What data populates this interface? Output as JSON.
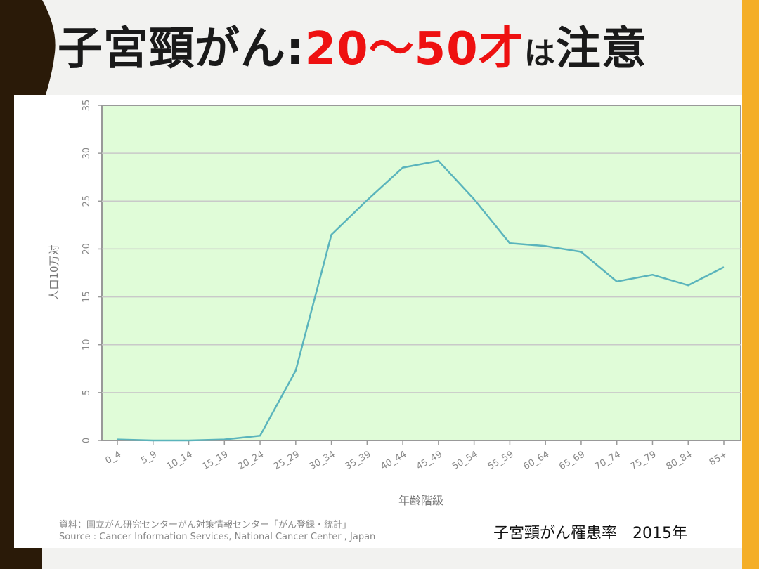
{
  "title": {
    "main": "子宮頸がん:",
    "accent": "20～50才",
    "small": "は",
    "end": "注意"
  },
  "caption": "子宮頸がん罹患率　2015年",
  "source": {
    "line1": "資料：国立がん研究センターがん対策情報センター「がん登録・統計」",
    "line2": "Source : Cancer Information Services, National Cancer Center , Japan"
  },
  "colors": {
    "plot_bg": "#e0fcd8",
    "line": "#5ab4bc",
    "dark_bar": "#2a1a08",
    "orange_bar": "#f4ae27",
    "accent": "#ee1111"
  },
  "chart_data": {
    "type": "line",
    "title": "",
    "xlabel": "年齢階級",
    "ylabel": "人口10万対",
    "ylim": [
      0,
      35
    ],
    "yticks": [
      0,
      5,
      10,
      15,
      20,
      25,
      30,
      35
    ],
    "grid": true,
    "categories": [
      "0_4",
      "5_9",
      "10_14",
      "15_19",
      "20_24",
      "25_29",
      "30_34",
      "35_39",
      "40_44",
      "45_49",
      "50_54",
      "55_59",
      "60_64",
      "65_69",
      "70_74",
      "75_79",
      "80_84",
      "85+"
    ],
    "series": [
      {
        "values": [
          0.1,
          0.0,
          0.0,
          0.1,
          0.5,
          7.3,
          21.5,
          25.1,
          28.5,
          29.2,
          25.2,
          20.6,
          20.3,
          19.7,
          16.6,
          17.3,
          16.2,
          18.1
        ]
      }
    ]
  }
}
